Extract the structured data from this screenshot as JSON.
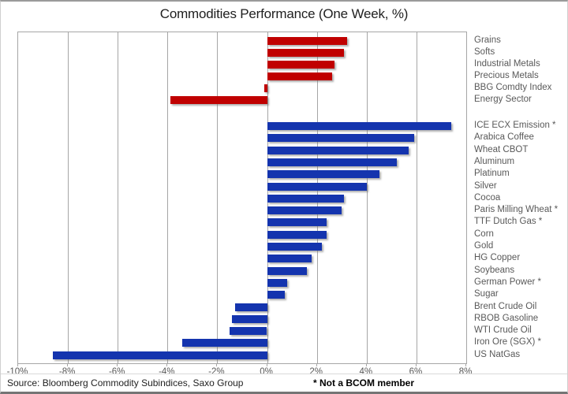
{
  "chart_data": {
    "type": "bar",
    "orientation": "horizontal",
    "title": "Commodities Performance (One Week, %)",
    "xlabel": "",
    "ylabel": "",
    "axis": {
      "min": -10,
      "max": 8,
      "step": 2,
      "tick_labels": [
        "-10%",
        "-8%",
        "-6%",
        "-4%",
        "-2%",
        "0%",
        "2%",
        "4%",
        "6%",
        "8%"
      ],
      "unit": "%"
    },
    "grid": "vertical-on",
    "legend": "none",
    "groups": [
      {
        "name": "sector-indices",
        "color": "#c00000",
        "items": [
          {
            "label": "Grains",
            "value": 3.2
          },
          {
            "label": "Softs",
            "value": 3.1
          },
          {
            "label": "Industrial Metals",
            "value": 2.7
          },
          {
            "label": "Precious Metals",
            "value": 2.6
          },
          {
            "label": "BBG Comdty Index",
            "value": -0.1
          },
          {
            "label": "Energy Sector",
            "value": -3.9
          }
        ]
      },
      {
        "name": "single-commodities",
        "color": "#1434ae",
        "items": [
          {
            "label": "ICE ECX Emission *",
            "value": 7.4
          },
          {
            "label": "Arabica Coffee",
            "value": 5.9
          },
          {
            "label": "Wheat CBOT",
            "value": 5.7
          },
          {
            "label": "Aluminum",
            "value": 5.2
          },
          {
            "label": "Platinum",
            "value": 4.5
          },
          {
            "label": "Silver",
            "value": 4.0
          },
          {
            "label": "Cocoa",
            "value": 3.1
          },
          {
            "label": "Paris Milling Wheat *",
            "value": 3.0
          },
          {
            "label": "TTF Dutch Gas *",
            "value": 2.4
          },
          {
            "label": "Corn",
            "value": 2.4
          },
          {
            "label": "Gold",
            "value": 2.2
          },
          {
            "label": "HG Copper",
            "value": 1.8
          },
          {
            "label": "Soybeans",
            "value": 1.6
          },
          {
            "label": "German Power *",
            "value": 0.8
          },
          {
            "label": "Sugar",
            "value": 0.7
          },
          {
            "label": "Brent Crude Oil",
            "value": -1.3
          },
          {
            "label": "RBOB Gasoline",
            "value": -1.4
          },
          {
            "label": "WTI Crude Oil",
            "value": -1.5
          },
          {
            "label": "Iron Ore (SGX) *",
            "value": -3.4
          },
          {
            "label": "US NatGas",
            "value": -8.6
          }
        ]
      }
    ],
    "source": "Source: Bloomberg Commodity Subindices, Saxo Group",
    "footnote": "* Not a BCOM member",
    "colors": {
      "sector_bar": "#c00000",
      "commodity_bar": "#1434ae",
      "gridline": "#a6a6a6",
      "label_text": "#595959"
    }
  }
}
